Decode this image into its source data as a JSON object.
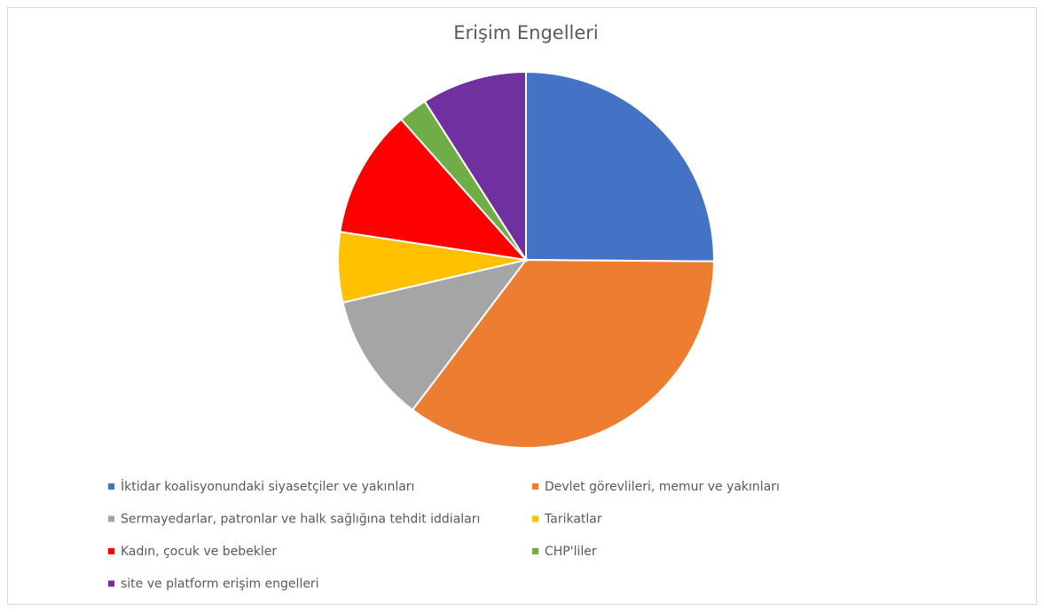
{
  "chart_data": {
    "type": "pie",
    "title": "Erişim Engelleri",
    "categories": [
      "İktidar koalisyonundaki siyasetçiler ve yakınları",
      "Devlet görevlileri, memur ve yakınları",
      "Sermayedarlar, patronlar ve halk sağlığına tehdit iddiaları",
      "Tarikatlar",
      "Kadın, çocuk ve bebekler",
      "CHP'liler",
      "site ve platform erişim engelleri"
    ],
    "values": [
      25,
      35,
      11,
      6,
      11,
      2.5,
      9
    ],
    "colors": [
      "#4472c4",
      "#ed7d31",
      "#a5a5a5",
      "#ffc000",
      "#ff0000",
      "#70ad47",
      "#7030a0"
    ],
    "legend": "bottom"
  }
}
